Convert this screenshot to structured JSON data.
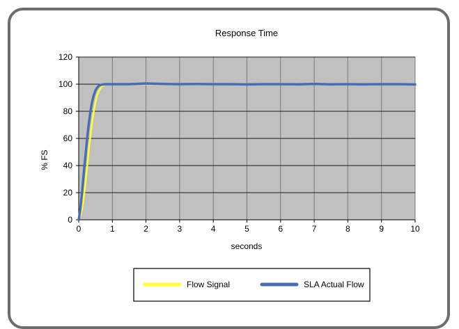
{
  "chart_data": {
    "type": "line",
    "title": "Response Time",
    "xlabel": "seconds",
    "ylabel": "% FS",
    "xlim": [
      0,
      10
    ],
    "ylim": [
      0,
      120
    ],
    "x_ticks": [
      0,
      1,
      2,
      3,
      4,
      5,
      6,
      7,
      8,
      9,
      10
    ],
    "y_ticks": [
      0,
      20,
      40,
      60,
      80,
      100,
      120
    ],
    "grid": true,
    "plot_background": "#c0c0c0",
    "legend_position": "bottom",
    "series": [
      {
        "name": "Flow Signal",
        "color": "#ffff33",
        "x": [
          0,
          0.05,
          0.1,
          0.15,
          0.2,
          0.25,
          0.3,
          0.35,
          0.4,
          0.45,
          0.5,
          0.55,
          0.6,
          0.65,
          0.7,
          0.75,
          0.8,
          0.9,
          1.0,
          10
        ],
        "y": [
          0,
          3,
          8,
          16,
          27,
          39,
          51,
          62,
          72,
          80,
          87,
          92,
          95,
          97,
          98.5,
          99.3,
          99.8,
          100,
          100,
          100
        ]
      },
      {
        "name": "SLA Actual Flow",
        "color": "#4a6cb0",
        "x": [
          0,
          0.05,
          0.1,
          0.15,
          0.2,
          0.25,
          0.3,
          0.35,
          0.4,
          0.45,
          0.5,
          0.55,
          0.6,
          0.65,
          0.7,
          0.75,
          0.8,
          1.0,
          1.5,
          2.0,
          2.5,
          3.0,
          3.5,
          4.0,
          4.5,
          5.0,
          5.5,
          6.0,
          6.5,
          7.0,
          7.5,
          8.0,
          8.5,
          9.0,
          9.5,
          10
        ],
        "y": [
          0,
          8,
          20,
          34,
          47,
          60,
          71,
          80,
          87,
          92,
          95.5,
          97.5,
          98.8,
          99.4,
          99.7,
          99.9,
          100,
          100,
          100,
          100.5,
          100.2,
          100,
          100.1,
          100,
          100,
          99.8,
          100,
          100,
          99.9,
          100.2,
          99.9,
          100,
          99.9,
          100,
          100,
          99.8
        ]
      }
    ]
  }
}
